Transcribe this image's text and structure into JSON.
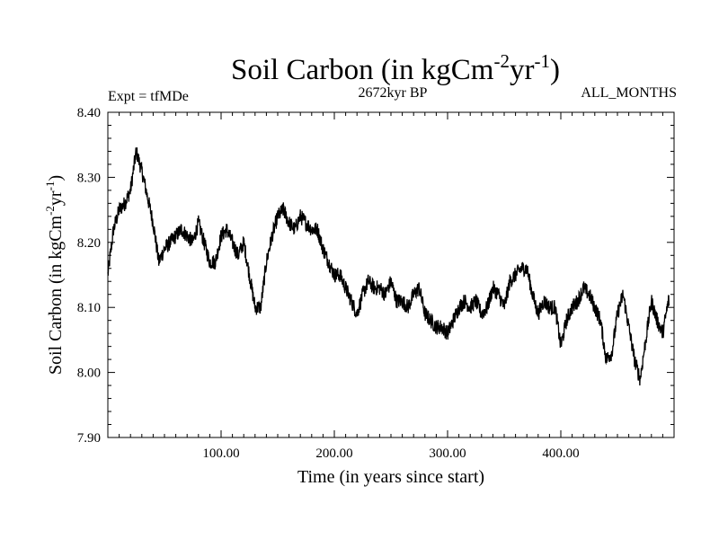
{
  "chart_data": {
    "type": "line",
    "title": "Soil Carbon (in kgCm",
    "title_sup1": "-2",
    "title_mid": "yr",
    "title_sup2": "-1",
    "title_end": ")",
    "expt_label": "Expt = tfMDe",
    "period_label": "2672kyr BP",
    "months_label": "ALL_MONTHS",
    "xlabel": "Time (in years since start)",
    "ylabel": "Soil Carbon (in kgCm",
    "ylabel_sup1": "-2",
    "ylabel_mid": "yr",
    "ylabel_sup2": "-1",
    "ylabel_end": ")",
    "xlim": [
      0,
      500
    ],
    "ylim": [
      7.9,
      8.4
    ],
    "x_ticks": [
      100,
      200,
      300,
      400
    ],
    "x_tick_labels": [
      "100.00",
      "200.00",
      "300.00",
      "400.00"
    ],
    "y_ticks": [
      8.4,
      8.3,
      8.2,
      8.1,
      8.0,
      7.9
    ],
    "y_tick_labels": [
      "8.40",
      "8.30",
      "8.20",
      "8.10",
      "8.00",
      "7.90"
    ],
    "series": [
      {
        "name": "Soil Carbon",
        "noise": 0.012,
        "x": [
          0,
          5,
          10,
          15,
          20,
          25,
          30,
          35,
          40,
          45,
          50,
          55,
          60,
          65,
          70,
          75,
          80,
          85,
          90,
          95,
          100,
          105,
          110,
          115,
          120,
          125,
          130,
          135,
          140,
          145,
          150,
          155,
          160,
          165,
          170,
          175,
          180,
          185,
          190,
          195,
          200,
          205,
          210,
          215,
          220,
          225,
          230,
          235,
          240,
          245,
          250,
          255,
          260,
          265,
          270,
          275,
          280,
          285,
          290,
          295,
          300,
          305,
          310,
          315,
          320,
          325,
          330,
          335,
          340,
          345,
          350,
          355,
          360,
          365,
          370,
          375,
          380,
          385,
          390,
          395,
          400,
          405,
          410,
          415,
          420,
          425,
          430,
          435,
          440,
          445,
          450,
          455,
          460,
          465,
          470,
          475,
          480,
          485,
          490,
          495,
          500
        ],
        "values": [
          8.15,
          8.22,
          8.25,
          8.26,
          8.28,
          8.34,
          8.31,
          8.27,
          8.23,
          8.17,
          8.19,
          8.2,
          8.21,
          8.22,
          8.21,
          8.2,
          8.23,
          8.2,
          8.17,
          8.17,
          8.21,
          8.22,
          8.2,
          8.18,
          8.2,
          8.15,
          8.1,
          8.1,
          8.17,
          8.21,
          8.24,
          8.25,
          8.23,
          8.22,
          8.24,
          8.23,
          8.22,
          8.22,
          8.19,
          8.17,
          8.15,
          8.15,
          8.13,
          8.11,
          8.09,
          8.12,
          8.14,
          8.13,
          8.13,
          8.12,
          8.14,
          8.11,
          8.11,
          8.1,
          8.12,
          8.13,
          8.09,
          8.08,
          8.07,
          8.07,
          8.06,
          8.08,
          8.1,
          8.11,
          8.1,
          8.11,
          8.09,
          8.1,
          8.13,
          8.12,
          8.1,
          8.14,
          8.15,
          8.16,
          8.16,
          8.12,
          8.09,
          8.11,
          8.1,
          8.1,
          8.04,
          8.08,
          8.1,
          8.11,
          8.13,
          8.12,
          8.1,
          8.08,
          8.02,
          8.03,
          8.09,
          8.12,
          8.07,
          8.02,
          7.99,
          8.05,
          8.11,
          8.08,
          8.06,
          8.11,
          8.11
        ]
      }
    ]
  }
}
